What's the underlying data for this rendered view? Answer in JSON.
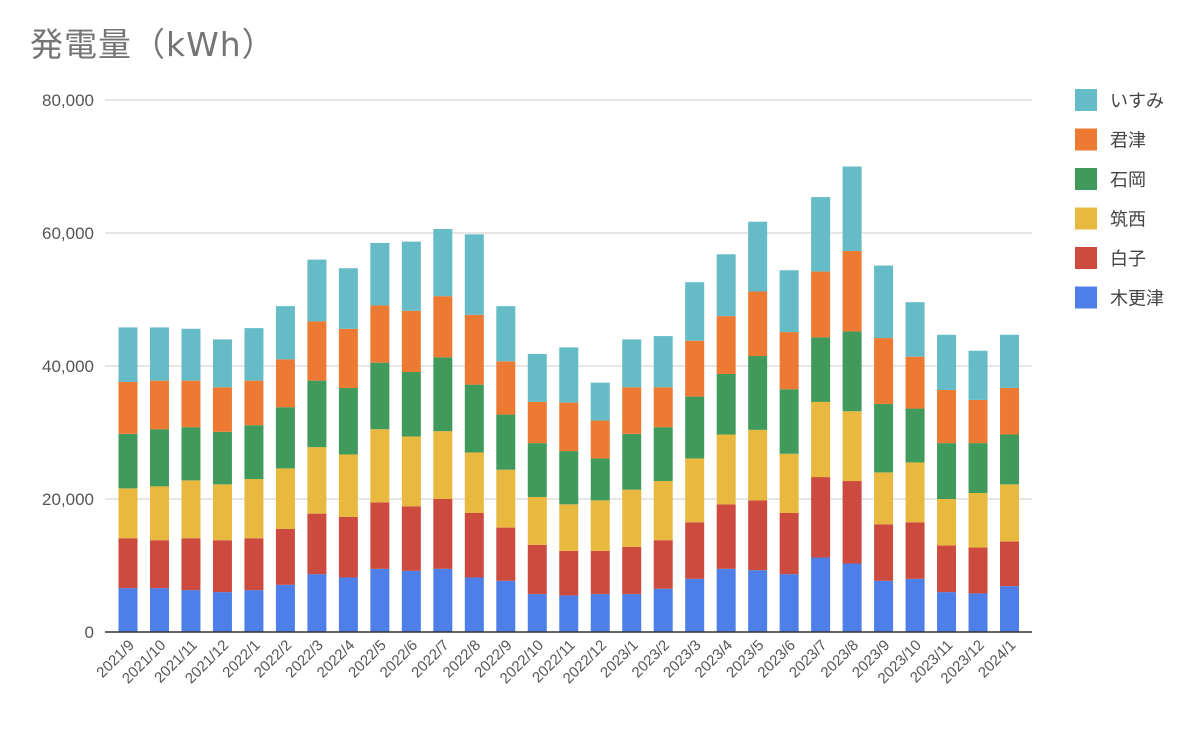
{
  "chart_data": {
    "type": "bar",
    "stacked": true,
    "title": "発電量（kWh）",
    "xlabel": "",
    "ylabel": "",
    "ylim": [
      0,
      80000
    ],
    "yticks": [
      0,
      20000,
      40000,
      60000,
      80000
    ],
    "ytick_labels": [
      "0",
      "20,000",
      "40,000",
      "60,000",
      "80,000"
    ],
    "grid": true,
    "legend_position": "right",
    "categories": [
      "2021/9",
      "2021/10",
      "2021/11",
      "2021/12",
      "2022/1",
      "2022/2",
      "2022/3",
      "2022/4",
      "2022/5",
      "2022/6",
      "2022/7",
      "2022/8",
      "2022/9",
      "2022/10",
      "2022/11",
      "2022/12",
      "2023/1",
      "2023/2",
      "2023/3",
      "2023/4",
      "2023/5",
      "2023/6",
      "2023/7",
      "2023/8",
      "2023/9",
      "2023/10",
      "2023/11",
      "2023/12",
      "2024/1"
    ],
    "series": [
      {
        "name": "木更津",
        "color": "#4e7fe8",
        "values": [
          6600,
          6600,
          6300,
          6000,
          6300,
          7100,
          8700,
          8200,
          9500,
          9200,
          9500,
          8200,
          7700,
          5700,
          5500,
          5700,
          5700,
          6500,
          8000,
          9500,
          9300,
          8700,
          11200,
          10300,
          7700,
          8000,
          6000,
          5800,
          6900
        ]
      },
      {
        "name": "白子",
        "color": "#cc4a3e",
        "values": [
          7500,
          7200,
          7800,
          7800,
          7800,
          8400,
          9100,
          9100,
          10000,
          9700,
          10500,
          9700,
          8000,
          7400,
          6700,
          6500,
          7100,
          7300,
          8500,
          9700,
          10500,
          9200,
          12100,
          12400,
          8500,
          8500,
          7000,
          6900,
          6700
        ]
      },
      {
        "name": "筑西",
        "color": "#e8b93e",
        "values": [
          7500,
          8100,
          8700,
          8400,
          8900,
          9100,
          10000,
          9400,
          11000,
          10500,
          10200,
          9100,
          8700,
          7200,
          7000,
          7600,
          8600,
          8900,
          9600,
          10500,
          10600,
          8900,
          11300,
          10500,
          7800,
          9000,
          7000,
          8200,
          8600
        ]
      },
      {
        "name": "石岡",
        "color": "#3f9a5b",
        "values": [
          8200,
          8600,
          8000,
          7900,
          8100,
          9200,
          10000,
          10000,
          10000,
          9700,
          11100,
          10200,
          8300,
          8100,
          8000,
          6300,
          8400,
          8100,
          9300,
          9100,
          11100,
          9700,
          9700,
          12000,
          10300,
          8100,
          8400,
          7500,
          7500
        ]
      },
      {
        "name": "君津",
        "color": "#ed7a32",
        "values": [
          7800,
          7300,
          7000,
          6700,
          6700,
          7200,
          8900,
          8900,
          8600,
          9200,
          9200,
          10500,
          8000,
          6200,
          7300,
          5700,
          7000,
          6000,
          8400,
          8700,
          9700,
          8600,
          9900,
          12100,
          9900,
          7800,
          8000,
          6500,
          7000
        ]
      },
      {
        "name": "いすみ",
        "color": "#66bcc6",
        "values": [
          8200,
          8000,
          7800,
          7200,
          7900,
          8000,
          9300,
          9100,
          9400,
          10400,
          10100,
          12100,
          8300,
          7200,
          8300,
          5700,
          7200,
          7700,
          8800,
          9300,
          10500,
          9300,
          11200,
          12700,
          10900,
          8200,
          8300,
          7400,
          8000
        ]
      }
    ]
  }
}
